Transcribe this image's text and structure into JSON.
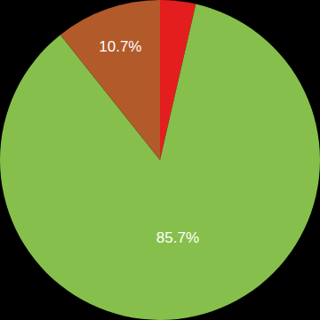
{
  "chart_data": {
    "type": "pie",
    "values": [
      3.6,
      85.7,
      10.7
    ],
    "value_labels": [
      null,
      "85.7%",
      "10.7%"
    ],
    "colors": [
      "#e41e1e",
      "#86bf4b",
      "#b35a2b"
    ],
    "data_labels": true
  }
}
